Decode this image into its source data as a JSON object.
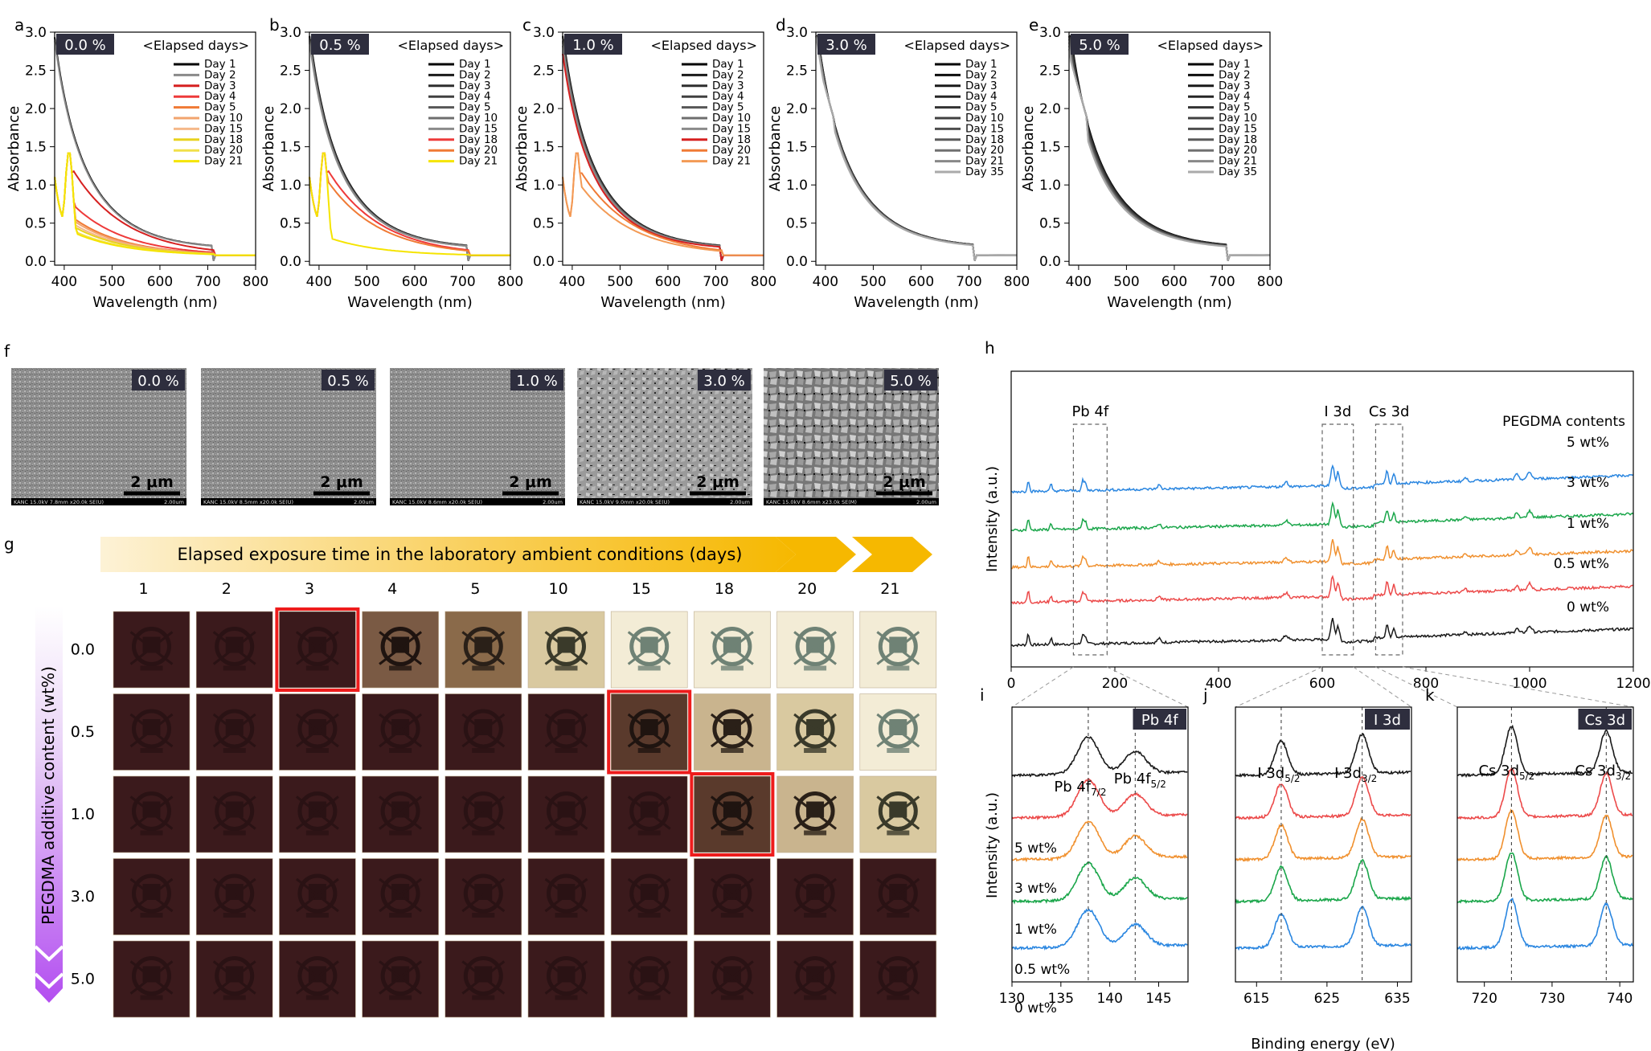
{
  "chart_data": {
    "type": "line",
    "absorbance_panels": [
      {
        "letter": "a",
        "badge": "0.0 %",
        "legend_title": "<Elapsed days>",
        "days": [
          "Day 1",
          "Day 2",
          "Day 3",
          "Day 4",
          "Day 5",
          "Day 10",
          "Day 15",
          "Day 18",
          "Day 20",
          "Day 21"
        ],
        "colors": [
          "#000000",
          "#8a8a8a",
          "#d62020",
          "#ee3a3a",
          "#f07a35",
          "#f2a46e",
          "#f5b889",
          "#e8d21e",
          "#f1e04a",
          "#f5e400"
        ],
        "peak_450": [
          1.35,
          1.33,
          0.92,
          0.55,
          0.45,
          0.42,
          0.38,
          0.35,
          0.3,
          0.28
        ]
      },
      {
        "letter": "b",
        "badge": "0.5 %",
        "legend_title": "<Elapsed days>",
        "days": [
          "Day 1",
          "Day 2",
          "Day 3",
          "Day 4",
          "Day 5",
          "Day 10",
          "Day 15",
          "Day 18",
          "Day 20",
          "Day 21"
        ],
        "colors": [
          "#000000",
          "#1a1a1a",
          "#2e2e2e",
          "#404040",
          "#575757",
          "#6e6e6e",
          "#8a8a8a",
          "#ee3a3a",
          "#f07a35",
          "#f5e400"
        ],
        "peak_450": [
          1.38,
          1.37,
          1.36,
          1.35,
          1.34,
          1.33,
          1.32,
          0.92,
          0.8,
          0.22
        ]
      },
      {
        "letter": "c",
        "badge": "1.0 %",
        "legend_title": "<Elapsed days>",
        "days": [
          "Day 1",
          "Day 2",
          "Day 3",
          "Day 4",
          "Day 5",
          "Day 10",
          "Day 15",
          "Day 18",
          "Day 20",
          "Day 21"
        ],
        "colors": [
          "#000000",
          "#1a1a1a",
          "#2e2e2e",
          "#404040",
          "#575757",
          "#6e6e6e",
          "#8a8a8a",
          "#d62020",
          "#f07a35",
          "#f39a55"
        ],
        "peak_450": [
          1.38,
          1.37,
          1.36,
          1.35,
          1.33,
          1.32,
          1.3,
          1.25,
          0.9,
          0.75
        ]
      },
      {
        "letter": "d",
        "badge": "3.0 %",
        "legend_title": "<Elapsed days>",
        "days": [
          "Day 1",
          "Day 2",
          "Day 3",
          "Day 4",
          "Day 5",
          "Day 10",
          "Day 15",
          "Day 18",
          "Day 20",
          "Day 21",
          "Day 35"
        ],
        "colors": [
          "#000000",
          "#0d0d0d",
          "#1a1a1a",
          "#262626",
          "#333333",
          "#404040",
          "#4d4d4d",
          "#5a5a5a",
          "#707070",
          "#888888",
          "#aaaaaa"
        ],
        "peak_450": [
          1.45,
          1.45,
          1.44,
          1.44,
          1.43,
          1.43,
          1.42,
          1.42,
          1.41,
          1.4,
          1.38
        ]
      },
      {
        "letter": "e",
        "badge": "5.0 %",
        "legend_title": "<Elapsed days>",
        "days": [
          "Day 1",
          "Day 2",
          "Day 3",
          "Day 4",
          "Day 5",
          "Day 10",
          "Day 15",
          "Day 18",
          "Day 20",
          "Day 21",
          "Day 35"
        ],
        "colors": [
          "#000000",
          "#0d0d0d",
          "#1a1a1a",
          "#262626",
          "#333333",
          "#404040",
          "#4d4d4d",
          "#5a5a5a",
          "#707070",
          "#888888",
          "#aaaaaa"
        ],
        "peak_450": [
          1.45,
          1.44,
          1.43,
          1.42,
          1.4,
          1.38,
          1.36,
          1.34,
          1.32,
          1.3,
          1.28
        ]
      }
    ],
    "absorbance_axes": {
      "xlabel": "Wavelength (nm)",
      "ylabel": "Absorbance",
      "xlim": [
        380,
        800
      ],
      "ylim": [
        -0.05,
        3.0
      ],
      "xticks": [
        "400",
        "500",
        "600",
        "700",
        "800"
      ],
      "yticks": [
        "0.0",
        "0.5",
        "1.0",
        "1.5",
        "2.0",
        "2.5",
        "3.0"
      ]
    },
    "sem": {
      "letter": "f",
      "badges": [
        "0.0 %",
        "0.5 %",
        "1.0 %",
        "3.0 %",
        "5.0 %"
      ],
      "scale": "2 μm",
      "footers": [
        "KANC 15.0kV 7.8mm x20.0k SE(U)",
        "KANC 15.0kV 8.5mm x20.0k SE(U)",
        "KANC 15.0kV 8.6mm x20.0k SE(U)",
        "KANC 15.0kV 9.0mm x20.0k SE(U)",
        "KANC 15.0kV 8.6mm x23.0k SE(M)"
      ],
      "footer_right": "2.00um"
    },
    "photo_grid": {
      "letter": "g",
      "banner": "Elapsed exposure time in the laboratory ambient conditions (days)",
      "days": [
        "1",
        "2",
        "3",
        "4",
        "5",
        "10",
        "15",
        "18",
        "20",
        "21"
      ],
      "rows": [
        "0.0",
        "0.5",
        "1.0",
        "3.0",
        "5.0"
      ],
      "ylabel": "PEGDMA additive content (wt%)",
      "degrade_start": [
        3,
        6,
        7,
        99,
        99
      ],
      "highlight": [
        [
          0,
          2
        ],
        [
          1,
          6
        ],
        [
          2,
          7
        ]
      ]
    },
    "xps_survey": {
      "letter": "h",
      "xlabel": "Binding energy (eV)",
      "ylabel": "Intensity (a.u.)",
      "xlim": [
        0,
        1200
      ],
      "xticks": [
        "0",
        "200",
        "400",
        "600",
        "800",
        "1000",
        "1200"
      ],
      "regions": [
        "Pb 4f",
        "I 3d",
        "Cs 3d"
      ],
      "legend_title": "PEGDMA contents",
      "series": [
        {
          "name": "5 wt%",
          "color": "#2a86e0"
        },
        {
          "name": "3 wt%",
          "color": "#1aa64a"
        },
        {
          "name": "1 wt%",
          "color": "#f0902e"
        },
        {
          "name": "0.5 wt%",
          "color": "#ec4a4a"
        },
        {
          "name": "0 wt%",
          "color": "#1a1a1a"
        }
      ]
    },
    "xps_zoom": [
      {
        "letter": "i",
        "badge": "Pb 4f",
        "xlim": [
          130,
          148
        ],
        "xticks": [
          "130",
          "135",
          "140",
          "145"
        ],
        "peaks": [
          137.8,
          142.6
        ],
        "peak_labels": [
          {
            "main": "Pb 4f",
            "sub": "7/2"
          },
          {
            "main": "Pb 4f",
            "sub": "5/2"
          }
        ],
        "series_labels": [
          "5 wt%",
          "3 wt%",
          "1 wt%",
          "0.5 wt%",
          "0 wt%"
        ]
      },
      {
        "letter": "j",
        "badge": "I 3d",
        "xlim": [
          612,
          637
        ],
        "xticks": [
          "615",
          "625",
          "635"
        ],
        "peaks": [
          618.5,
          630.0
        ],
        "peak_labels": [
          {
            "main": "I 3d",
            "sub": "5/2"
          },
          {
            "main": "I 3d",
            "sub": "3/2"
          }
        ]
      },
      {
        "letter": "k",
        "badge": "Cs 3d",
        "xlim": [
          716,
          742
        ],
        "xticks": [
          "720",
          "730",
          "740"
        ],
        "peaks": [
          724.0,
          738.0
        ],
        "peak_labels": [
          {
            "main": "Cs 3d",
            "sub": "5/2"
          },
          {
            "main": "Cs 3d",
            "sub": "3/2"
          }
        ]
      }
    ],
    "xps_zoom_axes": {
      "ylabel": "Intensity (a.u.)",
      "xlabel": "Binding energy (eV)"
    }
  }
}
